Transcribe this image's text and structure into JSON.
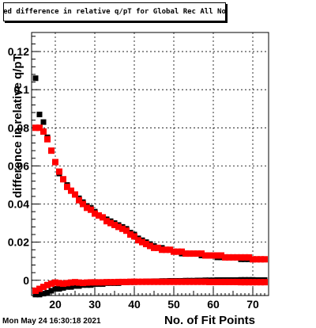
{
  "chart_data": {
    "type": "scatter",
    "title": "Fitted difference in relative q/pT for Global Rec All NoHits",
    "xlabel": "No. of Fit Points",
    "ylabel": "difference in relative q/pT",
    "xlim": [
      14,
      74
    ],
    "ylim": [
      -0.008,
      0.13
    ],
    "x_ticks": [
      20,
      30,
      40,
      50,
      60,
      70
    ],
    "y_ticks": [
      0,
      0.02,
      0.04,
      0.06,
      0.08,
      0.1,
      0.12
    ],
    "x_tick_labels": [
      "20",
      "30",
      "40",
      "50",
      "60",
      "70"
    ],
    "y_tick_labels": [
      "0",
      "0.02",
      "0.04",
      "0.06",
      "0.08",
      "0.1",
      "0.12"
    ],
    "grid": true,
    "x": [
      15,
      16,
      17,
      18,
      19,
      20,
      21,
      22,
      23,
      24,
      25,
      26,
      27,
      28,
      29,
      30,
      31,
      32,
      33,
      34,
      35,
      36,
      37,
      38,
      39,
      40,
      41,
      42,
      43,
      44,
      45,
      46,
      47,
      48,
      49,
      50,
      51,
      52,
      53,
      54,
      55,
      56,
      57,
      58,
      59,
      60,
      61,
      62,
      63,
      64,
      65,
      66,
      67,
      68,
      69,
      70,
      71,
      72,
      73
    ],
    "series": [
      {
        "color": "#000000",
        "values": [
          0.106,
          0.087,
          0.083,
          0.075,
          0.068,
          0.062,
          0.056,
          0.053,
          0.05,
          0.047,
          0.045,
          0.043,
          0.041,
          0.039,
          0.038,
          0.036,
          0.034,
          0.033,
          0.032,
          0.031,
          0.03,
          0.029,
          0.028,
          0.027,
          0.025,
          0.024,
          0.022,
          0.021,
          0.02,
          0.019,
          0.018,
          0.017,
          0.017,
          0.016,
          0.016,
          0.015,
          0.015,
          0.014,
          0.014,
          0.014,
          0.014,
          0.014,
          0.013,
          0.013,
          0.013,
          0.013,
          0.012,
          0.012,
          0.012,
          0.012,
          0.012,
          0.012,
          0.011,
          0.011,
          0.011,
          0.011,
          0.011,
          0.011,
          0.011
        ]
      },
      {
        "color": "#ff0000",
        "values": [
          0.08,
          0.08,
          0.078,
          0.074,
          0.068,
          0.062,
          0.057,
          0.053,
          0.049,
          0.047,
          0.045,
          0.042,
          0.04,
          0.038,
          0.037,
          0.035,
          0.034,
          0.033,
          0.031,
          0.03,
          0.029,
          0.028,
          0.027,
          0.026,
          0.024,
          0.023,
          0.021,
          0.02,
          0.019,
          0.018,
          0.017,
          0.017,
          0.016,
          0.016,
          0.016,
          0.015,
          0.015,
          0.015,
          0.014,
          0.014,
          0.014,
          0.014,
          0.014,
          0.013,
          0.013,
          0.013,
          0.013,
          0.013,
          0.012,
          0.012,
          0.012,
          0.012,
          0.012,
          0.012,
          0.012,
          0.011,
          0.011,
          0.011,
          0.011
        ]
      },
      {
        "color": "#000000",
        "values": [
          -0.0075,
          -0.0075,
          -0.007,
          -0.0065,
          -0.0055,
          -0.0045,
          -0.0045,
          -0.004,
          -0.0035,
          -0.0035,
          -0.003,
          -0.003,
          -0.0025,
          -0.0025,
          -0.0025,
          -0.002,
          -0.002,
          -0.002,
          -0.0015,
          -0.0015,
          -0.0015,
          -0.0015,
          -0.001,
          -0.001,
          -0.001,
          -0.001,
          -0.0008,
          -0.0008,
          -0.0006,
          -0.0006,
          -0.0005,
          -0.0005,
          -0.0004,
          -0.0004,
          -0.0003,
          -0.0003,
          -0.0003,
          -0.0003,
          -0.0002,
          -0.0002,
          -0.0002,
          -0.0001,
          -0.0001,
          0,
          0,
          0,
          0.0001,
          0.0001,
          0.0001,
          0.0001,
          0.0001,
          0.0001,
          0.0002,
          0.0002,
          0.0002,
          0.0002,
          0.0001,
          0.0001,
          0.0001
        ]
      },
      {
        "color": "#ff0000",
        "values": [
          -0.0055,
          -0.0045,
          -0.0035,
          -0.0025,
          -0.0018,
          -0.0012,
          -0.0015,
          -0.0018,
          -0.0015,
          -0.0012,
          -0.001,
          -0.0012,
          -0.0014,
          -0.0012,
          -0.0011,
          -0.0011,
          -0.0011,
          -0.0011,
          -0.001,
          -0.001,
          -0.001,
          -0.0009,
          -0.0009,
          -0.0009,
          -0.0008,
          -0.0008,
          -0.0008,
          -0.0008,
          -0.0008,
          -0.0008,
          -0.0008,
          -0.0008,
          -0.0008,
          -0.0008,
          -0.0008,
          -0.0008,
          -0.0008,
          -0.0008,
          -0.0008,
          -0.0008,
          -0.0008,
          -0.0008,
          -0.0008,
          -0.0008,
          -0.0009,
          -0.0009,
          -0.0009,
          -0.0009,
          -0.0009,
          -0.0009,
          -0.0009,
          -0.0009,
          -0.001,
          -0.001,
          -0.001,
          -0.001,
          -0.001,
          -0.001,
          -0.001
        ]
      }
    ]
  },
  "footer": {
    "datestamp": "Mon May 24 16:30:18 2021"
  }
}
